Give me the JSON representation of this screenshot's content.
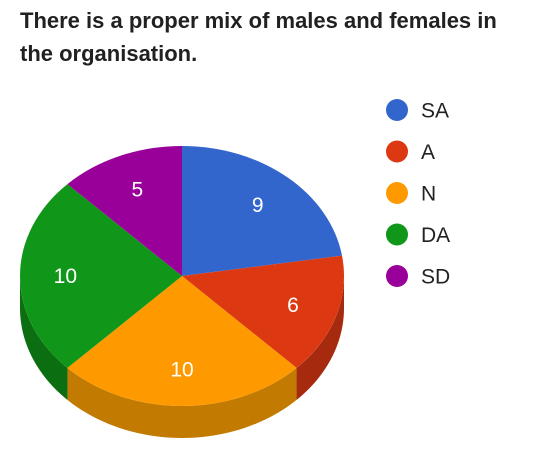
{
  "title": "There is a proper mix of males and females in the organisation.",
  "chart_data": {
    "type": "pie",
    "style": "3d",
    "title": "There is a proper mix of males and females in the organisation.",
    "categories": [
      "SA",
      "A",
      "N",
      "DA",
      "SD"
    ],
    "values": [
      9,
      6,
      10,
      10,
      5
    ],
    "colors": [
      "#3366CC",
      "#DC3912",
      "#FF9900",
      "#109618",
      "#990099"
    ],
    "side_colors": [
      "#2A55A8",
      "#A52A0E",
      "#C27A00",
      "#0B6E10",
      "#6E006E"
    ],
    "legend_position": "right",
    "start_angle": "12 o'clock, clockwise"
  }
}
